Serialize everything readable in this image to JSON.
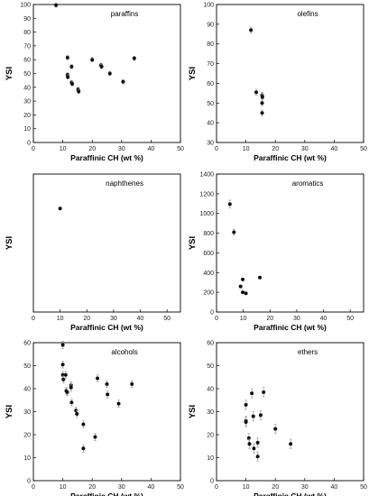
{
  "chart_data": [
    {
      "type": "scatter",
      "title": "paraffins",
      "xlabel": "Paraffinic CH (wt %)",
      "ylabel": "YSI",
      "xlim": [
        0,
        50
      ],
      "ylim": [
        0,
        100
      ],
      "xticks": [
        0,
        10,
        20,
        30,
        40,
        50
      ],
      "yticks": [
        0,
        10,
        20,
        30,
        40,
        50,
        60,
        70,
        80,
        90,
        100
      ],
      "error_bars": true,
      "points": [
        {
          "x": 7.7,
          "y": 99.5,
          "err": 1.5
        },
        {
          "x": 11.6,
          "y": 61.5,
          "err": 1.5
        },
        {
          "x": 13.0,
          "y": 55.0,
          "err": 1.5
        },
        {
          "x": 11.6,
          "y": 49.0,
          "err": 1.5
        },
        {
          "x": 11.7,
          "y": 47.5,
          "err": 1.5
        },
        {
          "x": 13.0,
          "y": 43.5,
          "err": 1.5
        },
        {
          "x": 13.2,
          "y": 42.5,
          "err": 1.5
        },
        {
          "x": 15.2,
          "y": 38.5,
          "err": 1.5
        },
        {
          "x": 15.4,
          "y": 37.0,
          "err": 1.5
        },
        {
          "x": 20.0,
          "y": 60.0,
          "err": 1.5
        },
        {
          "x": 23.0,
          "y": 56.0,
          "err": 1.5
        },
        {
          "x": 23.2,
          "y": 55.0,
          "err": 1.5
        },
        {
          "x": 26.0,
          "y": 50.0,
          "err": 1.5
        },
        {
          "x": 30.5,
          "y": 44.0,
          "err": 1.5
        },
        {
          "x": 34.3,
          "y": 61.0,
          "err": 1.5
        }
      ]
    },
    {
      "type": "scatter",
      "title": "olefins",
      "xlabel": "Paraffinic CH (wt %)",
      "ylabel": "YSI",
      "xlim": [
        0,
        50
      ],
      "ylim": [
        30,
        100
      ],
      "xticks": [
        0,
        10,
        20,
        30,
        40,
        50
      ],
      "yticks": [
        30,
        40,
        50,
        60,
        70,
        80,
        90,
        100
      ],
      "error_bars": true,
      "points": [
        {
          "x": 11.7,
          "y": 87.0,
          "err": 1.5
        },
        {
          "x": 13.5,
          "y": 55.5,
          "err": 1.5
        },
        {
          "x": 15.5,
          "y": 54.0,
          "err": 1.5
        },
        {
          "x": 15.6,
          "y": 53.0,
          "err": 1.5
        },
        {
          "x": 15.5,
          "y": 50.0,
          "err": 1.5
        },
        {
          "x": 15.5,
          "y": 45.0,
          "err": 1.5
        }
      ]
    },
    {
      "type": "scatter",
      "title": "naphthenes",
      "xlabel": "Paraffinic CH (wt %)",
      "ylabel": "YSI",
      "xlim": [
        0,
        55
      ],
      "ylim": [
        null,
        null
      ],
      "xticks": [
        0,
        10,
        20,
        30,
        40,
        50
      ],
      "yticks": [],
      "error_bars": true,
      "points": [
        {
          "x": 10.0,
          "y": 75.0,
          "err": 1.0
        }
      ]
    },
    {
      "type": "scatter",
      "title": "aromatics",
      "xlabel": "Paraffinic CH (wt %)",
      "ylabel": "YSI",
      "xlim": [
        0,
        55
      ],
      "ylim": [
        0,
        1400
      ],
      "xticks": [
        0,
        10,
        20,
        30,
        40,
        50
      ],
      "yticks": [
        0,
        200,
        400,
        600,
        800,
        1000,
        1200,
        1400
      ],
      "error_bars": true,
      "points": [
        {
          "x": 5.0,
          "y": 1095,
          "err": 40
        },
        {
          "x": 6.5,
          "y": 810,
          "err": 30
        },
        {
          "x": 9.0,
          "y": 260,
          "err": 10
        },
        {
          "x": 9.8,
          "y": 330,
          "err": 10
        },
        {
          "x": 9.8,
          "y": 200,
          "err": 10
        },
        {
          "x": 11.0,
          "y": 190,
          "err": 10
        },
        {
          "x": 16.2,
          "y": 350,
          "err": 10
        }
      ]
    },
    {
      "type": "scatter",
      "title": "alcohols",
      "xlabel": "Paraffinic CH (wt %)",
      "ylabel": "YSI",
      "xlim": [
        0,
        50
      ],
      "ylim": [
        0,
        60
      ],
      "xticks": [
        0,
        10,
        20,
        30,
        40,
        50
      ],
      "yticks": [
        0,
        10,
        20,
        30,
        40,
        50,
        60
      ],
      "error_bars": true,
      "points": [
        {
          "x": 10.0,
          "y": 59.0,
          "err": 1.5
        },
        {
          "x": 10.0,
          "y": 50.5,
          "err": 1.5
        },
        {
          "x": 10.0,
          "y": 46.0,
          "err": 1.5
        },
        {
          "x": 10.2,
          "y": 44.0,
          "err": 1.5
        },
        {
          "x": 11.0,
          "y": 46.0,
          "err": 1.5
        },
        {
          "x": 11.2,
          "y": 39.0,
          "err": 1.5
        },
        {
          "x": 11.5,
          "y": 38.5,
          "err": 1.5
        },
        {
          "x": 12.8,
          "y": 41.5,
          "err": 1.5
        },
        {
          "x": 12.8,
          "y": 40.5,
          "err": 1.5
        },
        {
          "x": 13.0,
          "y": 34.0,
          "err": 1.5
        },
        {
          "x": 14.5,
          "y": 30.5,
          "err": 1.5
        },
        {
          "x": 14.8,
          "y": 29.0,
          "err": 1.5
        },
        {
          "x": 17.0,
          "y": 24.5,
          "err": 1.5
        },
        {
          "x": 17.0,
          "y": 14.0,
          "err": 1.5
        },
        {
          "x": 21.0,
          "y": 19.0,
          "err": 1.5
        },
        {
          "x": 21.8,
          "y": 44.5,
          "err": 1.5
        },
        {
          "x": 25.0,
          "y": 42.0,
          "err": 1.5
        },
        {
          "x": 25.2,
          "y": 37.5,
          "err": 1.5
        },
        {
          "x": 29.0,
          "y": 33.5,
          "err": 1.5
        },
        {
          "x": 33.5,
          "y": 42.0,
          "err": 1.5
        }
      ]
    },
    {
      "type": "scatter",
      "title": "ethers",
      "xlabel": "Paraffinic CH (wt %)",
      "ylabel": "YSI",
      "xlim": [
        0,
        50
      ],
      "ylim": [
        0,
        60
      ],
      "xticks": [
        0,
        10,
        20,
        30,
        40,
        50
      ],
      "yticks": [
        0,
        10,
        20,
        30,
        40,
        50,
        60
      ],
      "error_bars": true,
      "points": [
        {
          "x": 10.0,
          "y": 33.0,
          "err": 2.0
        },
        {
          "x": 10.0,
          "y": 26.0,
          "err": 2.0
        },
        {
          "x": 10.0,
          "y": 25.5,
          "err": 2.0
        },
        {
          "x": 11.0,
          "y": 18.5,
          "err": 2.0
        },
        {
          "x": 11.2,
          "y": 16.0,
          "err": 2.0
        },
        {
          "x": 12.0,
          "y": 38.0,
          "err": 2.0
        },
        {
          "x": 12.5,
          "y": 28.0,
          "err": 2.0
        },
        {
          "x": 12.7,
          "y": 14.0,
          "err": 2.0
        },
        {
          "x": 14.0,
          "y": 16.5,
          "err": 2.0
        },
        {
          "x": 14.0,
          "y": 10.5,
          "err": 2.0
        },
        {
          "x": 15.0,
          "y": 28.5,
          "err": 2.0
        },
        {
          "x": 16.0,
          "y": 38.5,
          "err": 2.0
        },
        {
          "x": 20.0,
          "y": 22.5,
          "err": 2.0
        },
        {
          "x": 25.2,
          "y": 16.0,
          "err": 2.0
        }
      ]
    }
  ]
}
